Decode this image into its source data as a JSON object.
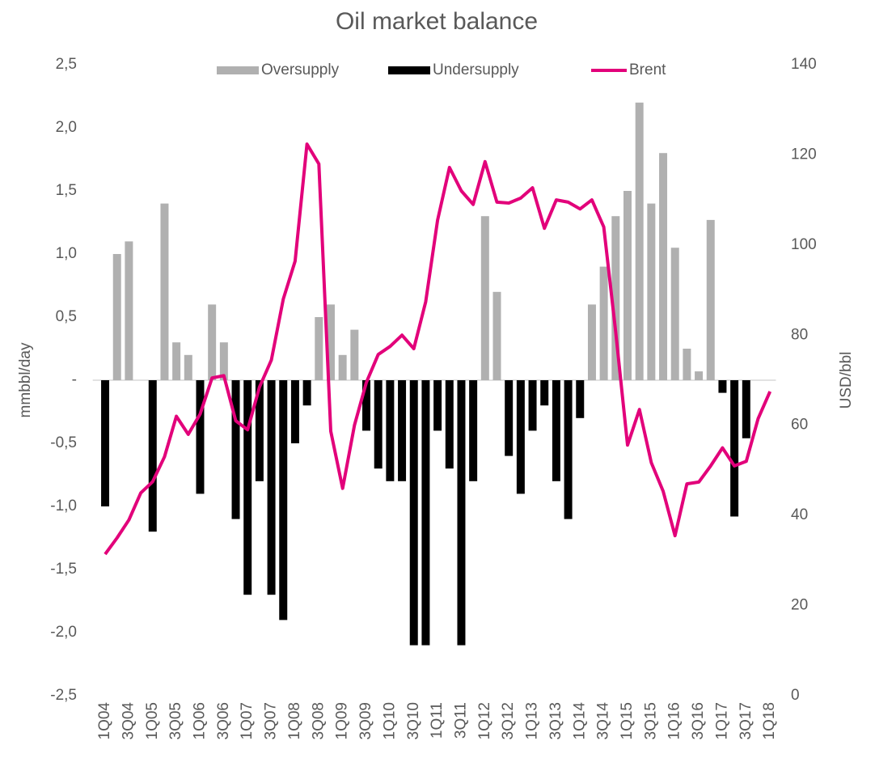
{
  "chart_data": {
    "type": "bar_line",
    "title": "Oil market balance",
    "y_label": "mmbbl/day",
    "y2_label": "USD/bbl",
    "legend": "top",
    "categories": [
      "1Q04",
      null,
      "3Q04",
      null,
      "1Q05",
      null,
      "3Q05",
      null,
      "1Q06",
      null,
      "3Q06",
      null,
      "1Q07",
      null,
      "3Q07",
      null,
      "1Q08",
      null,
      "3Q08",
      null,
      "1Q09",
      null,
      "3Q09",
      null,
      "1Q10",
      null,
      "3Q10",
      null,
      "1Q11",
      null,
      "3Q11",
      null,
      "1Q12",
      null,
      "3Q12",
      null,
      "1Q13",
      null,
      "3Q13",
      null,
      "1Q14",
      null,
      "3Q14",
      null,
      "1Q15",
      null,
      "3Q15",
      null,
      "1Q16",
      null,
      "3Q16",
      null,
      "1Q17",
      null,
      "3Q17",
      null,
      "1Q18"
    ],
    "series": [
      {
        "name": "Oversupply",
        "type": "bar",
        "color": "#b0b0b0",
        "values": [
          null,
          1.0,
          1.1,
          null,
          null,
          1.4,
          0.3,
          0.2,
          null,
          0.6,
          0.3,
          null,
          null,
          null,
          null,
          null,
          null,
          null,
          0.5,
          0.6,
          0.2,
          0.4,
          null,
          null,
          null,
          null,
          null,
          null,
          null,
          null,
          null,
          null,
          1.3,
          0.7,
          null,
          null,
          null,
          null,
          null,
          null,
          null,
          0.6,
          0.9,
          1.3,
          1.5,
          2.2,
          1.4,
          1.8,
          1.05,
          0.25,
          0.07,
          1.27,
          null,
          null,
          null,
          null,
          null
        ]
      },
      {
        "name": "Undersupply",
        "type": "bar",
        "color": "#000000",
        "values": [
          -1.0,
          null,
          null,
          null,
          -1.2,
          null,
          null,
          null,
          -0.9,
          null,
          null,
          -1.1,
          -1.7,
          -0.8,
          -1.7,
          -1.9,
          -0.5,
          -0.2,
          null,
          null,
          null,
          null,
          -0.4,
          -0.7,
          -0.8,
          -0.8,
          -2.1,
          -2.1,
          -0.4,
          -0.7,
          -2.1,
          -0.8,
          null,
          null,
          -0.6,
          -0.9,
          -0.4,
          -0.2,
          -0.8,
          -1.1,
          -0.3,
          null,
          null,
          null,
          null,
          null,
          null,
          null,
          null,
          null,
          null,
          null,
          -0.1,
          -1.08,
          -0.46,
          null,
          null
        ]
      },
      {
        "name": "Brent",
        "type": "line",
        "axis": "y2",
        "color": "#e2007a",
        "values": [
          31.4,
          35,
          39,
          45,
          47.5,
          53,
          62,
          58,
          62.5,
          70.5,
          71,
          61,
          59,
          68.5,
          74.5,
          88,
          96.4,
          122.4,
          118,
          58.7,
          46,
          60,
          69.5,
          75.7,
          77.5,
          80,
          77,
          87.4,
          105.5,
          117.2,
          112,
          109,
          118.5,
          109.5,
          109.3,
          110.4,
          112.7,
          103.7,
          110,
          109.5,
          108,
          110,
          104,
          80.8,
          55.6,
          63.5,
          51.7,
          45.4,
          35.5,
          47,
          47.4,
          51,
          55,
          51,
          52,
          61.5,
          67.5
        ]
      }
    ],
    "ylim": [
      -2.5,
      2.5
    ],
    "yticks": [
      {
        "value": 2.5,
        "label": "2,5"
      },
      {
        "value": 2.0,
        "label": "2,0"
      },
      {
        "value": 1.5,
        "label": "1,5"
      },
      {
        "value": 1.0,
        "label": "1,0"
      },
      {
        "value": 0.5,
        "label": "0,5"
      },
      {
        "value": 0,
        "label": "-"
      },
      {
        "value": -0.5,
        "label": "-0,5"
      },
      {
        "value": -1.0,
        "label": "-1,0"
      },
      {
        "value": -1.5,
        "label": "-1,5"
      },
      {
        "value": -2.0,
        "label": "-2,0"
      },
      {
        "value": -2.5,
        "label": "-2,5"
      }
    ],
    "y2lim": [
      0,
      140
    ],
    "y2ticks": [
      0,
      20,
      40,
      60,
      80,
      100,
      120,
      140
    ],
    "grid": false
  }
}
